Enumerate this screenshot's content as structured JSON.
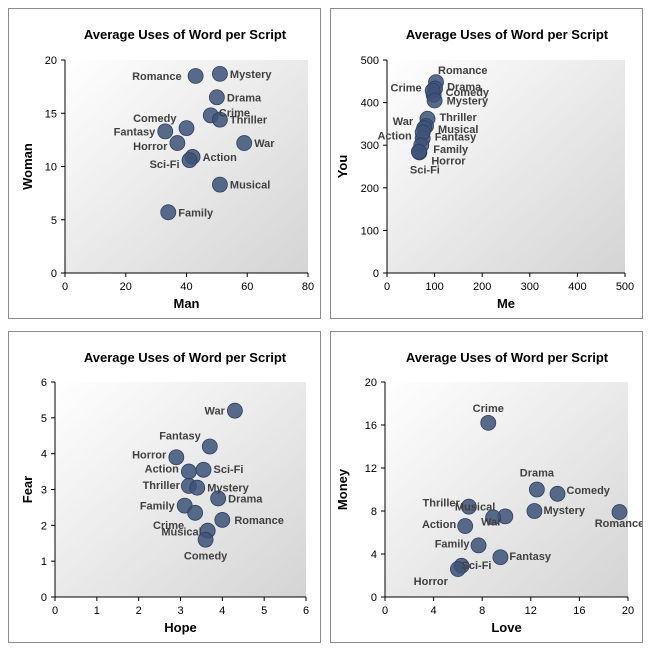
{
  "colors": {
    "marker": "#3d5278",
    "marker_edge": "#2e3f60",
    "label": "#404040",
    "plot_bg_start": "#ffffff",
    "plot_bg_end": "#d4d4d4"
  },
  "chart_data": [
    {
      "type": "scatter",
      "title": "Average Uses of Word per Script",
      "xlabel": "Man",
      "ylabel": "Woman",
      "xlim": [
        0,
        80
      ],
      "ylim": [
        0,
        20
      ],
      "xticks": [
        "0",
        "20",
        "40",
        "60",
        "80"
      ],
      "yticks": [
        "0",
        "5",
        "10",
        "15",
        "20"
      ],
      "grid": false,
      "points": [
        {
          "label": "Romance",
          "x": 43,
          "y": 18.5
        },
        {
          "label": "Mystery",
          "x": 51,
          "y": 18.7
        },
        {
          "label": "Drama",
          "x": 50,
          "y": 16.5
        },
        {
          "label": "Crime",
          "x": 48,
          "y": 14.8
        },
        {
          "label": "Comedy",
          "x": 40,
          "y": 13.6
        },
        {
          "label": "Thriller",
          "x": 51,
          "y": 14.4
        },
        {
          "label": "Fantasy",
          "x": 33,
          "y": 13.3
        },
        {
          "label": "War",
          "x": 59,
          "y": 12.2
        },
        {
          "label": "Horror",
          "x": 37,
          "y": 12.2
        },
        {
          "label": "Action",
          "x": 42,
          "y": 10.9
        },
        {
          "label": "Sci-Fi",
          "x": 41,
          "y": 10.6
        },
        {
          "label": "Musical",
          "x": 51,
          "y": 8.3
        },
        {
          "label": "Family",
          "x": 34,
          "y": 5.7
        }
      ]
    },
    {
      "type": "scatter",
      "title": "Average Uses of Word per Script",
      "xlabel": "Me",
      "ylabel": "You",
      "xlim": [
        0,
        500
      ],
      "ylim": [
        0,
        500
      ],
      "xticks": [
        "0",
        "100",
        "200",
        "300",
        "400",
        "500"
      ],
      "yticks": [
        "0",
        "100",
        "200",
        "300",
        "400",
        "500"
      ],
      "grid": false,
      "points": [
        {
          "label": "Romance",
          "x": 103,
          "y": 448
        },
        {
          "label": "Drama",
          "x": 101,
          "y": 433
        },
        {
          "label": "Comedy",
          "x": 98,
          "y": 418
        },
        {
          "label": "Crime",
          "x": 96,
          "y": 428
        },
        {
          "label": "Mystery",
          "x": 100,
          "y": 405
        },
        {
          "label": "Thriller",
          "x": 85,
          "y": 362
        },
        {
          "label": "Musical",
          "x": 82,
          "y": 345
        },
        {
          "label": "War",
          "x": 78,
          "y": 340
        },
        {
          "label": "Action",
          "x": 75,
          "y": 316
        },
        {
          "label": "Fantasy",
          "x": 75,
          "y": 330
        },
        {
          "label": "Family",
          "x": 72,
          "y": 300
        },
        {
          "label": "Horror",
          "x": 68,
          "y": 283
        },
        {
          "label": "Sci-Fi",
          "x": 67,
          "y": 285
        }
      ]
    },
    {
      "type": "scatter",
      "title": "Average Uses of Word per Script",
      "xlabel": "Hope",
      "ylabel": "Fear",
      "xlim": [
        0,
        6
      ],
      "ylim": [
        0,
        6
      ],
      "xticks": [
        "0",
        "1",
        "2",
        "3",
        "4",
        "5",
        "6"
      ],
      "yticks": [
        "0",
        "1",
        "2",
        "3",
        "4",
        "5",
        "6"
      ],
      "grid": false,
      "points": [
        {
          "label": "War",
          "x": 4.3,
          "y": 5.2
        },
        {
          "label": "Fantasy",
          "x": 3.7,
          "y": 4.2
        },
        {
          "label": "Horror",
          "x": 2.9,
          "y": 3.9
        },
        {
          "label": "Action",
          "x": 3.2,
          "y": 3.5
        },
        {
          "label": "Sci-Fi",
          "x": 3.55,
          "y": 3.55
        },
        {
          "label": "Thriller",
          "x": 3.2,
          "y": 3.1
        },
        {
          "label": "Mystery",
          "x": 3.4,
          "y": 3.05
        },
        {
          "label": "Family",
          "x": 3.1,
          "y": 2.55
        },
        {
          "label": "Drama",
          "x": 3.9,
          "y": 2.75
        },
        {
          "label": "Crime",
          "x": 3.35,
          "y": 2.35
        },
        {
          "label": "Romance",
          "x": 4.0,
          "y": 2.15
        },
        {
          "label": "Musical",
          "x": 3.65,
          "y": 1.85
        },
        {
          "label": "Comedy",
          "x": 3.6,
          "y": 1.6
        }
      ]
    },
    {
      "type": "scatter",
      "title": "Average Uses of Word per Script",
      "xlabel": "Love",
      "ylabel": "Money",
      "xlim": [
        0,
        20
      ],
      "ylim": [
        0,
        20
      ],
      "xticks": [
        "0",
        "4",
        "8",
        "12",
        "16",
        "20"
      ],
      "yticks": [
        "0",
        "4",
        "8",
        "12",
        "16",
        "20"
      ],
      "grid": false,
      "points": [
        {
          "label": "Crime",
          "x": 8.5,
          "y": 16.2
        },
        {
          "label": "Drama",
          "x": 12.5,
          "y": 10.0
        },
        {
          "label": "Comedy",
          "x": 14.2,
          "y": 9.6
        },
        {
          "label": "Thriller",
          "x": 6.9,
          "y": 8.4
        },
        {
          "label": "Mystery",
          "x": 12.3,
          "y": 8.0
        },
        {
          "label": "Romance",
          "x": 19.3,
          "y": 7.9
        },
        {
          "label": "Musical",
          "x": 9.9,
          "y": 7.5
        },
        {
          "label": "War",
          "x": 8.9,
          "y": 7.4
        },
        {
          "label": "Action",
          "x": 6.6,
          "y": 6.6
        },
        {
          "label": "Family",
          "x": 7.7,
          "y": 4.8
        },
        {
          "label": "Fantasy",
          "x": 9.5,
          "y": 3.7
        },
        {
          "label": "Sci-Fi",
          "x": 6.3,
          "y": 2.9
        },
        {
          "label": "Horror",
          "x": 6.0,
          "y": 2.6
        }
      ]
    }
  ]
}
